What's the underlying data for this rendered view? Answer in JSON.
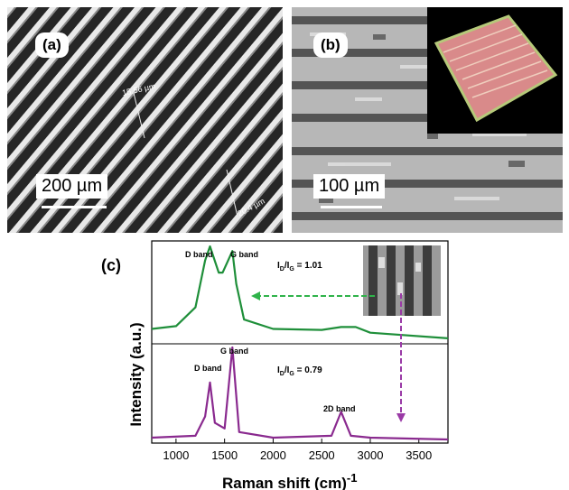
{
  "panel_a": {
    "label": "(a)",
    "scale_bar": "200 µm",
    "measurement_1": "15.56 µm",
    "measurement_2": "20.4 µm"
  },
  "panel_b": {
    "label": "(b)",
    "scale_bar": "100 µm"
  },
  "panel_c": {
    "label": "(c)",
    "ylabel": "Intensity (a.u.)",
    "xlabel": "Raman shift (cm)",
    "xlabel_superscript": "-1",
    "x_ticks": [
      "1000",
      "1500",
      "2000",
      "2500",
      "3000",
      "3500"
    ],
    "upper": {
      "d_band": "D band",
      "g_band": "G band",
      "ratio_sub_d": "D",
      "ratio_sub_g": "G",
      "ratio_value": " = 1.01",
      "color": "#1f8f3a"
    },
    "lower": {
      "d_band": "D band",
      "g_band": "G band",
      "band_2d": "2D band",
      "ratio_sub_d": "D",
      "ratio_sub_g": "G",
      "ratio_value": " = 0.79",
      "color": "#8a2a8f"
    }
  },
  "chart_data": {
    "type": "line",
    "xlabel": "Raman shift (cm)-1",
    "ylabel": "Intensity (a.u.)",
    "xlim": [
      750,
      3800
    ],
    "series": [
      {
        "x": [
          750,
          1000,
          1200,
          1300,
          1350,
          1440,
          1480,
          1580,
          1620,
          1700,
          2000,
          2500,
          2700,
          2850,
          3000,
          3800
        ],
        "y": [
          0.12,
          0.15,
          0.35,
          0.85,
          1.0,
          0.72,
          0.72,
          0.95,
          0.6,
          0.22,
          0.12,
          0.11,
          0.14,
          0.14,
          0.08,
          0.02
        ]
      },
      {
        "x": [
          750,
          1200,
          1300,
          1350,
          1400,
          1500,
          1580,
          1650,
          2000,
          2600,
          2700,
          2800,
          3000,
          3800
        ],
        "y": [
          0.02,
          0.04,
          0.25,
          0.62,
          0.18,
          0.12,
          1.0,
          0.08,
          0.02,
          0.04,
          0.3,
          0.04,
          0.02,
          0.0
        ]
      }
    ]
  }
}
